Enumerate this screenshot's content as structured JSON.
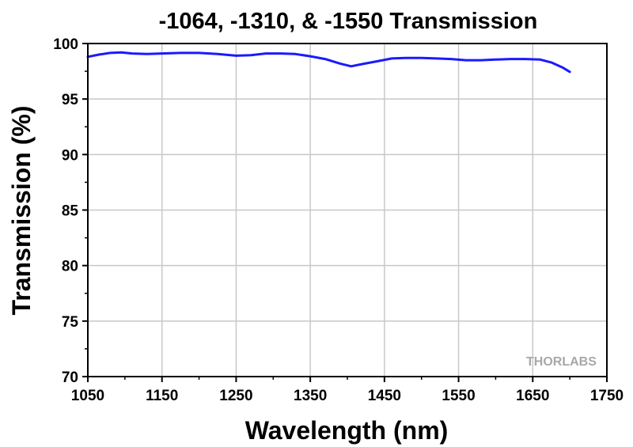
{
  "chart_data": {
    "type": "line",
    "title": "-1064, -1310, & -1550 Transmission",
    "xlabel": "Wavelength (nm)",
    "ylabel": "Transmission (%)",
    "xlim": [
      1050,
      1750
    ],
    "ylim": [
      70,
      100
    ],
    "xticks": [
      1050,
      1150,
      1250,
      1350,
      1450,
      1550,
      1650,
      1750
    ],
    "yticks": [
      70,
      75,
      80,
      85,
      90,
      95,
      100
    ],
    "grid": true,
    "series": [
      {
        "color": "#1a1aff",
        "x": [
          1050,
          1065,
          1080,
          1095,
          1110,
          1130,
          1150,
          1175,
          1200,
          1225,
          1250,
          1270,
          1290,
          1310,
          1330,
          1350,
          1370,
          1390,
          1405,
          1420,
          1440,
          1460,
          1480,
          1500,
          1520,
          1540,
          1560,
          1580,
          1600,
          1620,
          1640,
          1660,
          1675,
          1690,
          1700
        ],
        "y": [
          98.8,
          99.0,
          99.15,
          99.2,
          99.1,
          99.05,
          99.1,
          99.15,
          99.15,
          99.05,
          98.9,
          98.95,
          99.1,
          99.1,
          99.05,
          98.85,
          98.6,
          98.2,
          97.95,
          98.15,
          98.4,
          98.65,
          98.7,
          98.7,
          98.65,
          98.6,
          98.5,
          98.5,
          98.55,
          98.6,
          98.6,
          98.55,
          98.3,
          97.85,
          97.45
        ]
      }
    ]
  },
  "watermark": {
    "text": "THORLABS"
  }
}
